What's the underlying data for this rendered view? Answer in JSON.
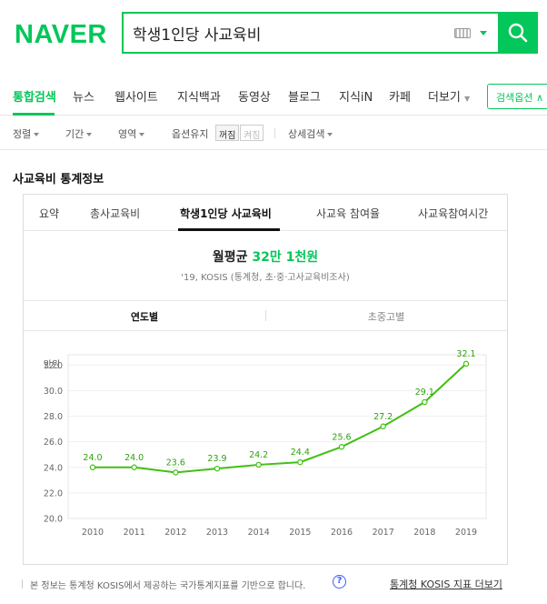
{
  "header": {
    "logo": "NAVER",
    "search_value": "학생1인당 사교육비"
  },
  "nav": {
    "tabs": [
      "통합검색",
      "뉴스",
      "웹사이트",
      "지식백과",
      "동영상",
      "블로그",
      "지식iN",
      "카페",
      "더보기"
    ],
    "options_label": "검색옵션 ∧"
  },
  "filters": {
    "sort": "정렬",
    "period": "기간",
    "area": "영역",
    "keep_options": "옵션유지",
    "off_label": "꺼짐",
    "on_label": "켜짐",
    "detail": "상세검색"
  },
  "section": {
    "title": "사교육비 통계정보",
    "tabs": [
      "요약",
      "총사교육비",
      "학생1인당 사교육비",
      "사교육 참여율",
      "사교육참여시간"
    ],
    "monthly_label": "월평균",
    "monthly_value": "32만 1천원",
    "source": "'19, KOSIS (통계청, 초·중·고사교육비조사)",
    "sub_tabs": [
      "연도별",
      "초중고별"
    ]
  },
  "chart_data": {
    "type": "line",
    "ylabel": "만원",
    "x": [
      "2010",
      "2011",
      "2012",
      "2013",
      "2014",
      "2015",
      "2016",
      "2017",
      "2018",
      "2019"
    ],
    "values": [
      24.0,
      24.0,
      23.6,
      23.9,
      24.2,
      24.4,
      25.6,
      27.2,
      29.1,
      32.1
    ],
    "value_labels": [
      "24.0",
      "24.0",
      "23.6",
      "23.9",
      "24.2",
      "24.4",
      "25.6",
      "27.2",
      "29.1",
      "32.1"
    ],
    "y_ticks": [
      "32.0",
      "30.0",
      "28.0",
      "26.0",
      "24.0",
      "22.0",
      "20.0"
    ],
    "ylim": [
      20,
      32
    ],
    "grid": true,
    "line_color": "#40c013"
  },
  "footer": {
    "note": "본 정보는 통계청 KOSIS에서 제공하는 국가통계지표를 기반으로 합니다.",
    "help": "?",
    "link": "통계청 KOSIS 지표 더보기"
  },
  "colors": {
    "brand": "#03c75a"
  }
}
